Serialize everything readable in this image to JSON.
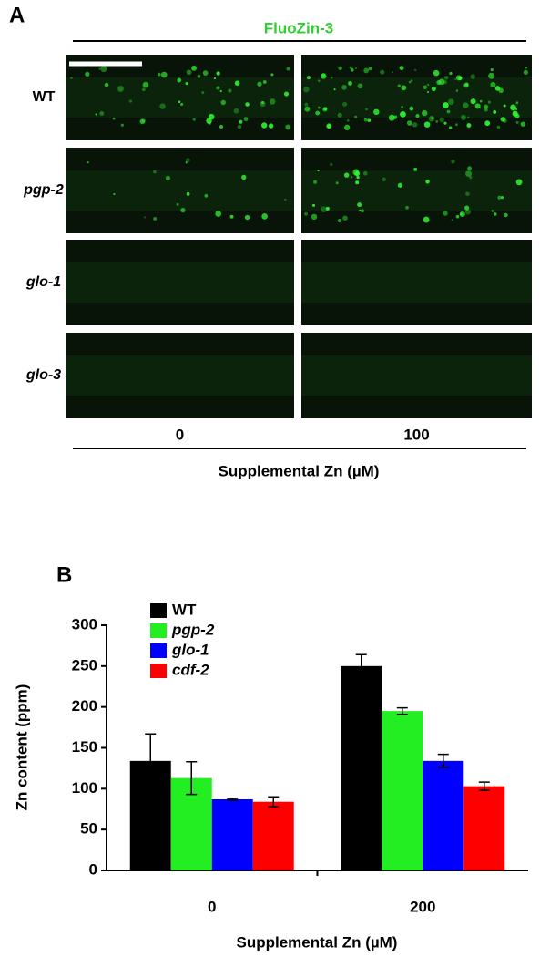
{
  "panel_a": {
    "label": "A",
    "title": "FluoZin-3",
    "rows": [
      "WT",
      "pgp-2",
      "glo-1",
      "glo-3"
    ],
    "columns": [
      "0",
      "100"
    ],
    "xlabel": "Supplemental Zn (µM)"
  },
  "chart_data": {
    "type": "bar",
    "panel_label": "B",
    "ylabel": "Zn content (ppm)",
    "xlabel": "Supplemental Zn (µM)",
    "categories": [
      "0",
      "200"
    ],
    "series": [
      {
        "name": "WT",
        "color": "#000000",
        "values": [
          134,
          250
        ],
        "errors": [
          33,
          14
        ]
      },
      {
        "name": "pgp-2",
        "color": "#22ee22",
        "values": [
          113,
          195
        ],
        "errors": [
          20,
          4
        ]
      },
      {
        "name": "glo-1",
        "color": "#0000ff",
        "values": [
          87,
          134
        ],
        "errors": [
          1,
          8
        ]
      },
      {
        "name": "cdf-2",
        "color": "#ff0000",
        "values": [
          84,
          103
        ],
        "errors": [
          6,
          5
        ]
      }
    ],
    "ylim": [
      0,
      300
    ],
    "yticks": [
      0,
      50,
      100,
      150,
      200,
      250,
      300
    ]
  }
}
